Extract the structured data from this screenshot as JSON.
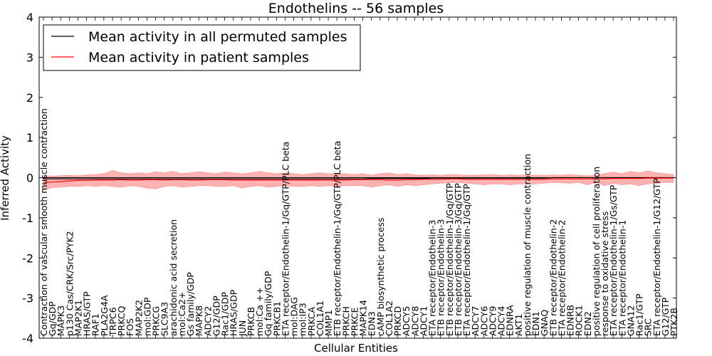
{
  "chart_data": {
    "type": "line",
    "title": "Endothelins -- 56 samples",
    "xlabel": "Cellular Entities",
    "ylabel": "Inferred Activity",
    "ylim": [
      -4,
      4
    ],
    "yticks": [
      4,
      3,
      2,
      1,
      0,
      -1,
      -2,
      -3,
      -4
    ],
    "legend_location": "top-left",
    "categories": [
      "Contraction of vascular smooth muscle contraction",
      "Gq/GDP",
      "MAPK3",
      "p130 Cas/CRK/Src/PYK2",
      "MAP2K1",
      "HRAS/GTP",
      "RAF1",
      "PLA2G4A",
      "TRPC6",
      "PRKCQ",
      "FOS",
      "MAP2K2",
      "mol:GDP",
      "PRKCG",
      "SLC9A3",
      "arachidonic acid secretion",
      "mol:Ca2+",
      "Gs family/GDP",
      "MAPK8",
      "ADCY2",
      "G12/GDP",
      "Rac1/GDP",
      "HRAS/GDP",
      "JUN",
      "PRKCB",
      "mol:Ca ++",
      "Gq family/GDP",
      "PRKCB1",
      "ETA receptor/Endothelin-1/Gq/GTP/PLC beta",
      "mol:DAG",
      "mol:IP3",
      "PRKCA",
      "COL1A1",
      "MMP1",
      "ETB receptor/Endothelin-1/Gq/GTP/PLC beta",
      "PRKCH",
      "PRKCE",
      "MAPK14",
      "EDN3",
      "cAMP biosynthetic process",
      "COL1A2",
      "PRKCD",
      "ADCY5",
      "ADCY8",
      "ADCY1",
      "ETA receptor/Endothelin-3",
      "ETB receptor/Endothelin-3",
      "ETB receptor/Endothelin-1/Gq/GTP",
      "ETB receptor/Endothelin-3/Gq/GTP",
      "ETA receptor/Endothelin-1/Gq/GTP",
      "ADCY7",
      "ADCY6",
      "ADCY9",
      "ADCY4",
      "EDNRA",
      "AKT1",
      "positive regulation of muscle contraction",
      "EDN1",
      "GNAQ",
      "ETB receptor/Endothelin-2",
      "ETA receptor/Endothelin-2",
      "EDNRB",
      "ROCK1",
      "EDN2",
      "positive regulation of cell proliferation",
      "response to oxidative stress",
      "ETA receptor/Endothelin-1/Gs/GTP",
      "ETA receptor/Endothelin-1",
      "GNA12",
      "Rac1/GTP",
      "SRC",
      "ETA receptor/Endothelin-1/G12/GTP",
      "G12/GTP",
      "PTK2B"
    ],
    "series": [
      {
        "name": "Mean activity in all permuted samples",
        "color": "#000000",
        "values": [
          -0.03,
          -0.03,
          -0.03,
          -0.03,
          -0.03,
          -0.03,
          -0.03,
          -0.03,
          -0.03,
          -0.03,
          -0.03,
          -0.03,
          -0.03,
          -0.03,
          -0.03,
          -0.03,
          -0.03,
          -0.03,
          -0.03,
          -0.03,
          -0.03,
          -0.03,
          -0.03,
          -0.03,
          -0.03,
          -0.03,
          -0.03,
          -0.03,
          -0.03,
          -0.03,
          -0.03,
          -0.03,
          -0.03,
          -0.03,
          -0.03,
          -0.03,
          -0.03,
          -0.03,
          -0.02,
          -0.02,
          -0.02,
          -0.02,
          -0.02,
          -0.02,
          -0.02,
          -0.01,
          -0.01,
          -0.01,
          -0.01,
          -0.01,
          -0.01,
          -0.01,
          -0.01,
          -0.01,
          -0.01,
          -0.01,
          -0.01,
          -0.01,
          -0.01,
          0.0,
          0.0,
          0.0,
          0.0,
          0.0,
          0.0,
          0.0,
          0.0,
          0.0,
          0.0,
          0.0,
          0.0,
          0.0,
          0.0,
          0.0
        ]
      },
      {
        "name": "Mean activity in patient samples",
        "color": "#ff0000",
        "values": [
          -0.12,
          -0.11,
          -0.1,
          -0.08,
          -0.07,
          -0.07,
          -0.06,
          -0.06,
          -0.06,
          -0.05,
          -0.06,
          -0.06,
          -0.05,
          -0.05,
          -0.06,
          -0.05,
          -0.05,
          -0.06,
          -0.06,
          -0.05,
          -0.05,
          -0.05,
          -0.06,
          -0.06,
          -0.06,
          -0.06,
          -0.06,
          -0.06,
          -0.06,
          -0.06,
          -0.06,
          -0.06,
          -0.06,
          -0.06,
          -0.06,
          -0.06,
          -0.05,
          -0.05,
          -0.05,
          -0.05,
          -0.06,
          -0.06,
          -0.05,
          -0.05,
          -0.04,
          -0.04,
          -0.04,
          -0.03,
          -0.03,
          -0.04,
          -0.04,
          -0.04,
          -0.04,
          -0.04,
          -0.04,
          -0.04,
          -0.04,
          -0.04,
          -0.04,
          -0.03,
          -0.03,
          -0.03,
          -0.03,
          -0.03,
          -0.03,
          -0.03,
          -0.02,
          -0.02,
          -0.02,
          -0.02,
          -0.01,
          -0.01,
          -0.01,
          -0.01
        ],
        "band_upper": [
          0.05,
          0.04,
          0.05,
          0.06,
          0.05,
          0.07,
          0.08,
          0.1,
          0.18,
          0.12,
          0.1,
          0.12,
          0.1,
          0.15,
          0.12,
          0.16,
          0.1,
          0.12,
          0.15,
          0.12,
          0.1,
          0.14,
          0.12,
          0.1,
          0.12,
          0.16,
          0.12,
          0.1,
          0.12,
          0.1,
          0.08,
          0.1,
          0.12,
          0.1,
          0.09,
          0.1,
          0.08,
          0.1,
          0.06,
          0.1,
          0.12,
          0.08,
          0.1,
          0.07,
          0.06,
          0.07,
          0.06,
          0.08,
          0.07,
          0.06,
          0.06,
          0.07,
          0.08,
          0.06,
          0.07,
          0.06,
          0.07,
          0.06,
          0.06,
          0.07,
          0.06,
          0.08,
          0.06,
          0.05,
          0.06,
          0.1,
          0.14,
          0.1,
          0.16,
          0.12,
          0.17,
          0.12,
          0.1,
          0.08
        ],
        "band_lower": [
          -0.3,
          -0.25,
          -0.24,
          -0.22,
          -0.22,
          -0.2,
          -0.22,
          -0.2,
          -0.22,
          -0.24,
          -0.2,
          -0.22,
          -0.26,
          -0.28,
          -0.22,
          -0.2,
          -0.24,
          -0.22,
          -0.2,
          -0.2,
          -0.22,
          -0.22,
          -0.2,
          -0.26,
          -0.22,
          -0.2,
          -0.24,
          -0.22,
          -0.2,
          -0.22,
          -0.22,
          -0.2,
          -0.22,
          -0.2,
          -0.22,
          -0.2,
          -0.2,
          -0.2,
          -0.24,
          -0.2,
          -0.18,
          -0.22,
          -0.18,
          -0.2,
          -0.18,
          -0.16,
          -0.14,
          -0.13,
          -0.12,
          -0.14,
          -0.16,
          -0.18,
          -0.16,
          -0.16,
          -0.18,
          -0.16,
          -0.16,
          -0.16,
          -0.14,
          -0.12,
          -0.13,
          -0.14,
          -0.12,
          -0.18,
          -0.12,
          -0.2,
          -0.14,
          -0.18,
          -0.16,
          -0.2,
          -0.16,
          -0.14,
          -0.12,
          -0.12
        ]
      }
    ]
  }
}
